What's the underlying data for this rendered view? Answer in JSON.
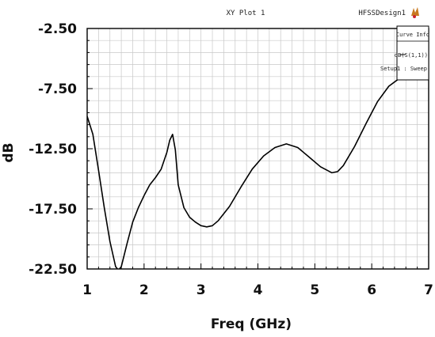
{
  "plot": {
    "title": "XY Plot 1",
    "design_label": "HFSSDesign1",
    "legend": {
      "header": "Curve Info",
      "entries": [
        {
          "label": "dB(S(1,1))",
          "sub_label": "Setup1 : Sweep"
        }
      ]
    }
  },
  "chart_data": {
    "type": "line",
    "xlabel": "Freq (GHz)",
    "ylabel": "dB",
    "xlim": [
      1,
      7
    ],
    "ylim": [
      -22.5,
      -2.5
    ],
    "x_ticks": [
      1,
      2,
      3,
      4,
      5,
      6,
      7
    ],
    "x_tick_labels": [
      "1",
      "2",
      "3",
      "4",
      "5",
      "6",
      "7"
    ],
    "y_ticks": [
      -2.5,
      -7.5,
      -12.5,
      -17.5,
      -22.5
    ],
    "y_tick_labels": [
      "-2.50",
      "-7.50",
      "-12.50",
      "-17.50",
      "-22.50"
    ],
    "grid": true,
    "legend_position": "top-right",
    "colors": {
      "line": "#000000",
      "grid": "#c8c8c8",
      "frame": "#000000"
    },
    "series": [
      {
        "name": "dB(S(1,1))",
        "x": [
          1.0,
          1.1,
          1.2,
          1.3,
          1.4,
          1.5,
          1.55,
          1.6,
          1.7,
          1.8,
          1.9,
          2.0,
          2.1,
          2.2,
          2.3,
          2.4,
          2.45,
          2.5,
          2.55,
          2.6,
          2.7,
          2.8,
          2.9,
          3.0,
          3.1,
          3.2,
          3.3,
          3.5,
          3.7,
          3.9,
          4.1,
          4.3,
          4.5,
          4.7,
          4.9,
          5.1,
          5.3,
          5.4,
          5.5,
          5.7,
          5.9,
          6.1,
          6.3,
          6.5,
          6.55
        ],
        "y": [
          -9.8,
          -11.3,
          -14.3,
          -17.4,
          -20.2,
          -22.3,
          -22.6,
          -22.3,
          -20.4,
          -18.6,
          -17.4,
          -16.4,
          -15.5,
          -14.9,
          -14.2,
          -12.8,
          -11.8,
          -11.3,
          -12.6,
          -15.5,
          -17.4,
          -18.2,
          -18.6,
          -18.9,
          -19.0,
          -18.9,
          -18.5,
          -17.3,
          -15.7,
          -14.2,
          -13.1,
          -12.4,
          -12.1,
          -12.4,
          -13.2,
          -14.0,
          -14.5,
          -14.4,
          -13.9,
          -12.3,
          -10.4,
          -8.6,
          -7.3,
          -6.6,
          -6.5
        ]
      }
    ]
  }
}
